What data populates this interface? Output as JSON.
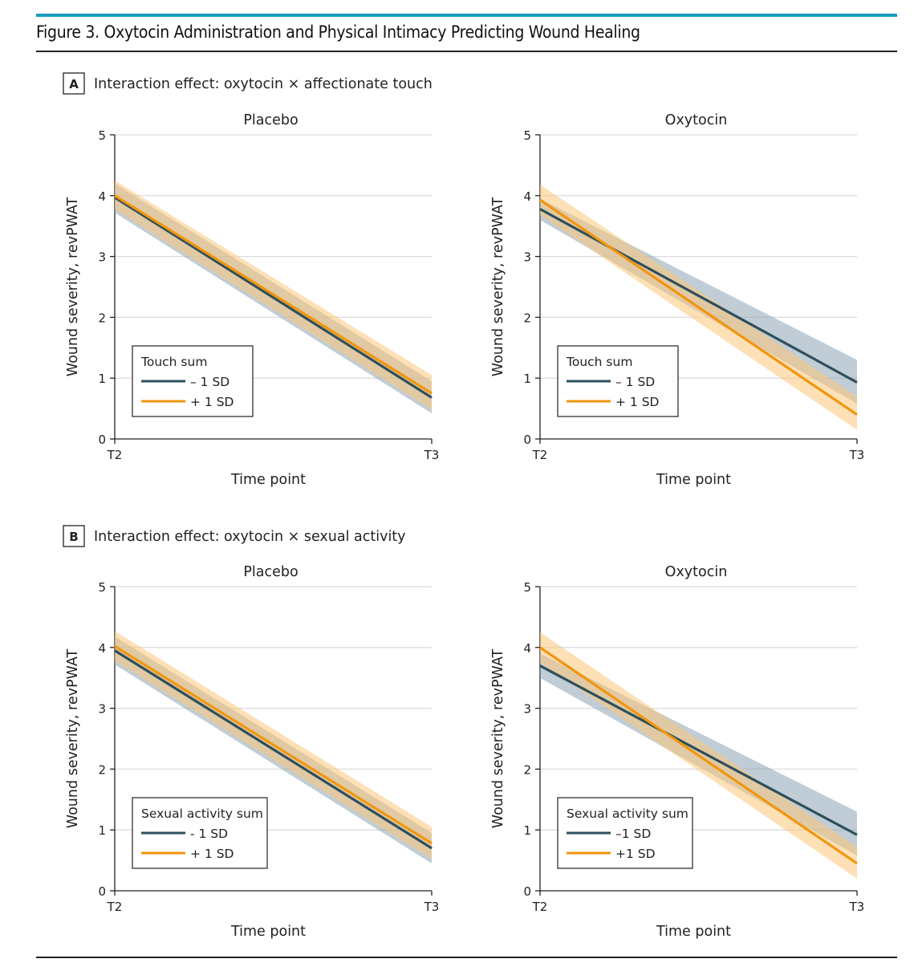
{
  "figure_title": "Figure 3. Oxytocin Administration and Physical Intimacy Predicting Wound Healing",
  "colors": {
    "minus_sd": "#2e4f5c",
    "plus_sd": "#f0960f",
    "minus_band": "#8da4b4",
    "plus_band": "#fbc77a",
    "accent": "#1a9bc4"
  },
  "chart_data": [
    {
      "type": "line",
      "panel": "A",
      "panel_title": "Interaction effect: oxytocin × affectionate touch",
      "subplot_title": "Placebo",
      "xlabel": "Time point",
      "ylabel": "Wound severity, revPWAT",
      "categories": [
        "T2",
        "T3"
      ],
      "ylim": [
        0,
        5
      ],
      "yticks": [
        "0",
        "1",
        "2",
        "3",
        "4",
        "5"
      ],
      "grid": true,
      "legend": {
        "title": "Touch sum",
        "placement": "bottom-left"
      },
      "series": [
        {
          "name": "– 1 SD",
          "values": [
            3.97,
            0.68
          ],
          "ci_low": [
            3.72,
            0.42
          ],
          "ci_high": [
            4.2,
            0.95
          ]
        },
        {
          "name": "+ 1 SD",
          "values": [
            4.0,
            0.75
          ],
          "ci_low": [
            3.77,
            0.48
          ],
          "ci_high": [
            4.25,
            1.05
          ]
        }
      ]
    },
    {
      "type": "line",
      "panel": "A",
      "subplot_title": "Oxytocin",
      "xlabel": "Time point",
      "ylabel": "Wound severity, revPWAT",
      "categories": [
        "T2",
        "T3"
      ],
      "ylim": [
        0,
        5
      ],
      "yticks": [
        "0",
        "1",
        "2",
        "3",
        "4",
        "5"
      ],
      "grid": true,
      "legend": {
        "title": "Touch sum",
        "placement": "bottom-left"
      },
      "series": [
        {
          "name": "– 1 SD",
          "values": [
            3.78,
            0.93
          ],
          "ci_low": [
            3.6,
            0.58
          ],
          "ci_high": [
            3.95,
            1.3
          ]
        },
        {
          "name": "+ 1 SD",
          "values": [
            3.93,
            0.4
          ],
          "ci_low": [
            3.68,
            0.15
          ],
          "ci_high": [
            4.18,
            0.7
          ]
        }
      ]
    },
    {
      "type": "line",
      "panel": "B",
      "panel_title": "Interaction effect: oxytocin × sexual activity",
      "subplot_title": "Placebo",
      "xlabel": "Time point",
      "ylabel": "Wound severity, revPWAT",
      "categories": [
        "T2",
        "T3"
      ],
      "ylim": [
        0,
        5
      ],
      "yticks": [
        "0",
        "1",
        "2",
        "3",
        "4",
        "5"
      ],
      "grid": true,
      "legend": {
        "title": "Sexual activity sum",
        "placement": "bottom-left"
      },
      "series": [
        {
          "name": "- 1 SD",
          "values": [
            3.95,
            0.7
          ],
          "ci_low": [
            3.72,
            0.45
          ],
          "ci_high": [
            4.18,
            0.95
          ]
        },
        {
          "name": "+ 1 SD",
          "values": [
            4.02,
            0.78
          ],
          "ci_low": [
            3.78,
            0.52
          ],
          "ci_high": [
            4.27,
            1.05
          ]
        }
      ]
    },
    {
      "type": "line",
      "panel": "B",
      "subplot_title": "Oxytocin",
      "xlabel": "Time point",
      "ylabel": "Wound severity, revPWAT",
      "categories": [
        "T2",
        "T3"
      ],
      "ylim": [
        0,
        5
      ],
      "yticks": [
        "0",
        "1",
        "2",
        "3",
        "4",
        "5"
      ],
      "grid": true,
      "legend": {
        "title": "Sexual activity sum",
        "placement": "bottom-left"
      },
      "series": [
        {
          "name": "–1 SD",
          "values": [
            3.7,
            0.92
          ],
          "ci_low": [
            3.5,
            0.58
          ],
          "ci_high": [
            3.9,
            1.3
          ]
        },
        {
          "name": "+1 SD",
          "values": [
            4.0,
            0.45
          ],
          "ci_low": [
            3.75,
            0.2
          ],
          "ci_high": [
            4.25,
            0.72
          ]
        }
      ]
    }
  ]
}
